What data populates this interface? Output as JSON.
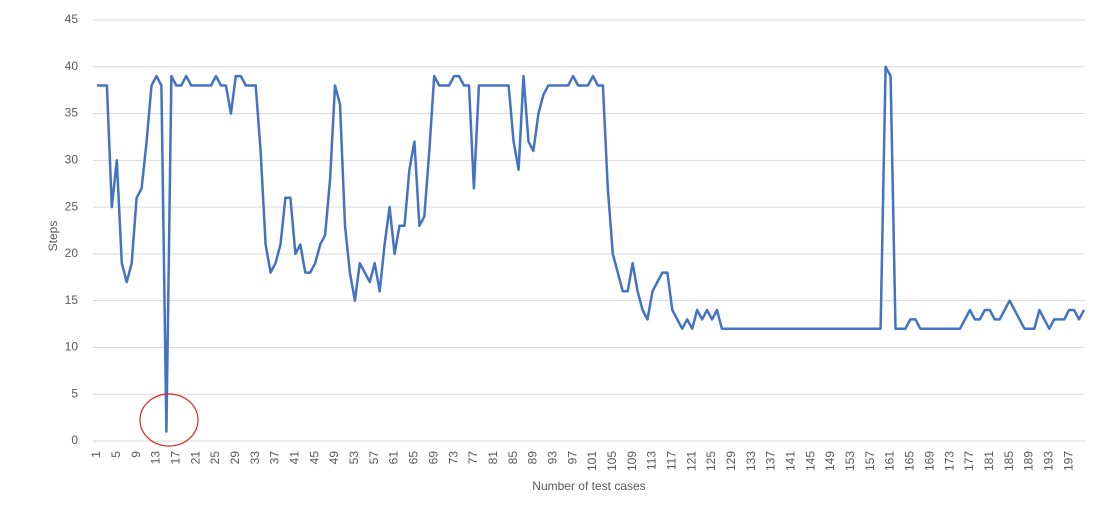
{
  "chart_data": {
    "type": "line",
    "xlabel": "Number of test cases",
    "ylabel": "Steps",
    "x": [
      1,
      2,
      3,
      4,
      5,
      6,
      7,
      8,
      9,
      10,
      11,
      12,
      13,
      14,
      15,
      16,
      17,
      18,
      19,
      20,
      21,
      22,
      23,
      24,
      25,
      26,
      27,
      28,
      29,
      30,
      31,
      32,
      33,
      34,
      35,
      36,
      37,
      38,
      39,
      40,
      41,
      42,
      43,
      44,
      45,
      46,
      47,
      48,
      49,
      50,
      51,
      52,
      53,
      54,
      55,
      56,
      57,
      58,
      59,
      60,
      61,
      62,
      63,
      64,
      65,
      66,
      67,
      68,
      69,
      70,
      71,
      72,
      73,
      74,
      75,
      76,
      77,
      78,
      79,
      80,
      81,
      82,
      83,
      84,
      85,
      86,
      87,
      88,
      89,
      90,
      91,
      92,
      93,
      94,
      95,
      96,
      97,
      98,
      99,
      100,
      101,
      102,
      103,
      104,
      105,
      106,
      107,
      108,
      109,
      110,
      111,
      112,
      113,
      114,
      115,
      116,
      117,
      118,
      119,
      120,
      121,
      122,
      123,
      124,
      125,
      126,
      127,
      128,
      129,
      130,
      131,
      132,
      133,
      134,
      135,
      136,
      137,
      138,
      139,
      140,
      141,
      142,
      143,
      144,
      145,
      146,
      147,
      148,
      149,
      150,
      151,
      152,
      153,
      154,
      155,
      156,
      157,
      158,
      159,
      160,
      161,
      162,
      163,
      164,
      165,
      166,
      167,
      168,
      169,
      170,
      171,
      172,
      173,
      174,
      175,
      176,
      177,
      178,
      179,
      180,
      181,
      182,
      183,
      184,
      185,
      186,
      187,
      188,
      189,
      190,
      191,
      192,
      193,
      194,
      195,
      196,
      197,
      198,
      199,
      200
    ],
    "series": [
      {
        "name": "Steps",
        "color": "#4472c4",
        "values": [
          38,
          38,
          38,
          25,
          30,
          19,
          17,
          19,
          26,
          27,
          32,
          38,
          39,
          38,
          1,
          39,
          38,
          38,
          39,
          38,
          38,
          38,
          38,
          38,
          39,
          38,
          38,
          35,
          39,
          39,
          38,
          38,
          38,
          31,
          21,
          18,
          19,
          21,
          26,
          26,
          20,
          21,
          18,
          18,
          19,
          21,
          22,
          28,
          38,
          36,
          23,
          18,
          15,
          19,
          18,
          17,
          19,
          16,
          21,
          25,
          20,
          23,
          23,
          29,
          32,
          23,
          24,
          31,
          39,
          38,
          38,
          38,
          39,
          39,
          38,
          38,
          27,
          38,
          38,
          38,
          38,
          38,
          38,
          38,
          32,
          29,
          39,
          32,
          31,
          35,
          37,
          38,
          38,
          38,
          38,
          38,
          39,
          38,
          38,
          38,
          39,
          38,
          38,
          27,
          20,
          18,
          16,
          16,
          19,
          16,
          14,
          13,
          16,
          17,
          18,
          18,
          14,
          13,
          12,
          13,
          12,
          14,
          13,
          14,
          13,
          14,
          12,
          12,
          12,
          12,
          12,
          12,
          12,
          12,
          12,
          12,
          12,
          12,
          12,
          12,
          12,
          12,
          12,
          12,
          12,
          12,
          12,
          12,
          12,
          12,
          12,
          12,
          12,
          12,
          12,
          12,
          12,
          12,
          12,
          40,
          39,
          12,
          12,
          12,
          13,
          13,
          12,
          12,
          12,
          12,
          12,
          12,
          12,
          12,
          12,
          13,
          14,
          13,
          13,
          14,
          14,
          13,
          13,
          14,
          15,
          14,
          13,
          12,
          12,
          12,
          14,
          13,
          12,
          13,
          13,
          13,
          14,
          14,
          13,
          14
        ]
      }
    ],
    "xlim": [
      0.2,
      200.2
    ],
    "xticks": [
      1,
      5,
      9,
      13,
      17,
      21,
      25,
      29,
      33,
      37,
      41,
      45,
      49,
      53,
      57,
      61,
      65,
      69,
      73,
      77,
      81,
      85,
      89,
      93,
      97,
      101,
      105,
      109,
      113,
      117,
      121,
      125,
      129,
      133,
      137,
      141,
      145,
      149,
      153,
      157,
      161,
      165,
      169,
      173,
      177,
      181,
      185,
      189,
      193,
      197
    ],
    "ylim": [
      0,
      45
    ],
    "yticks": [
      0,
      5,
      10,
      15,
      20,
      25,
      30,
      35,
      40,
      45
    ],
    "grid": true
  }
}
